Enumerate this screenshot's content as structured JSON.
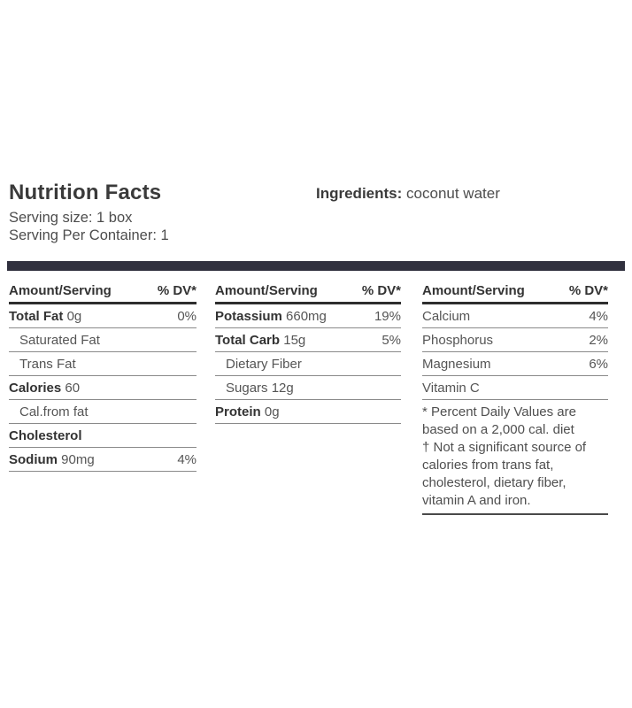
{
  "header": {
    "title": "Nutrition Facts",
    "serving_size": "Serving size: 1 box",
    "servings_per_container": "Serving Per Container: 1",
    "ingredients_label": "Ingredients:",
    "ingredients_value": "coconut water"
  },
  "colors": {
    "divider_bar": "#30303e",
    "heavy_rule": "#2e2e2e",
    "light_rule": "#8a8a8a",
    "bold_text": "#333333",
    "regular_text": "#555555"
  },
  "table": {
    "column_header": {
      "amount": "Amount/Serving",
      "dv": "% DV*"
    },
    "columns": [
      {
        "rows": [
          {
            "label": "Total Fat",
            "value": "0g",
            "dv": "0%",
            "bold": true
          },
          {
            "label": "Saturated Fat",
            "indent": true
          },
          {
            "label": "Trans Fat",
            "indent": true
          },
          {
            "label": "Calories",
            "value": "60",
            "bold": true
          },
          {
            "label": "Cal.from fat",
            "indent": true
          },
          {
            "label": "Cholesterol",
            "bold": true
          },
          {
            "label": "Sodium",
            "value": "90mg",
            "dv": "4%",
            "bold": true
          }
        ]
      },
      {
        "rows": [
          {
            "label": "Potassium",
            "value": "660mg",
            "dv": "19%",
            "bold": true
          },
          {
            "label": "Total Carb",
            "value": "15g",
            "dv": "5%",
            "bold": true
          },
          {
            "label": "Dietary Fiber",
            "indent": true
          },
          {
            "label": "Sugars",
            "value": "12g",
            "indent": true
          },
          {
            "label": "Protein",
            "value": "0g",
            "bold": true
          }
        ]
      },
      {
        "rows": [
          {
            "label": "Calcium",
            "dv": "4%"
          },
          {
            "label": "Phosphorus",
            "dv": "2%"
          },
          {
            "label": "Magnesium",
            "dv": "6%"
          },
          {
            "label": "Vitamin C"
          }
        ]
      }
    ],
    "footnotes": [
      "* Percent Daily Values are based on a 2,000 cal. diet",
      "† Not a significant source of calories from trans fat, cholesterol, dietary fiber, vitamin A and iron."
    ]
  }
}
